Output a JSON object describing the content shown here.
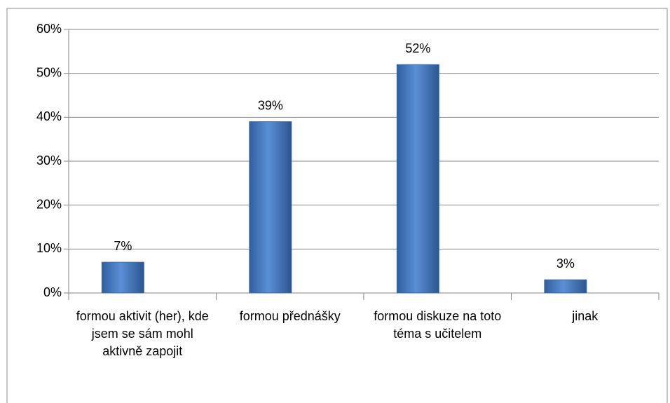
{
  "chart_data": {
    "type": "bar",
    "categories": [
      "formou aktivit (her), kde jsem se sám mohl aktivně zapojit",
      "formou přednášky",
      "formou diskuze na toto téma s učitelem",
      "jinak"
    ],
    "values": [
      7,
      39,
      52,
      3
    ],
    "value_labels": [
      "7%",
      "39%",
      "52%",
      "3%"
    ],
    "color": "#4a7ebb",
    "ylim": [
      0,
      60
    ],
    "yticks": [
      {
        "value": 0,
        "label": "0%"
      },
      {
        "value": 10,
        "label": "10%"
      },
      {
        "value": 20,
        "label": "20%"
      },
      {
        "value": 30,
        "label": "30%"
      },
      {
        "value": 40,
        "label": "40%"
      },
      {
        "value": 50,
        "label": "50%"
      },
      {
        "value": 60,
        "label": "60%"
      }
    ],
    "grid": true
  }
}
